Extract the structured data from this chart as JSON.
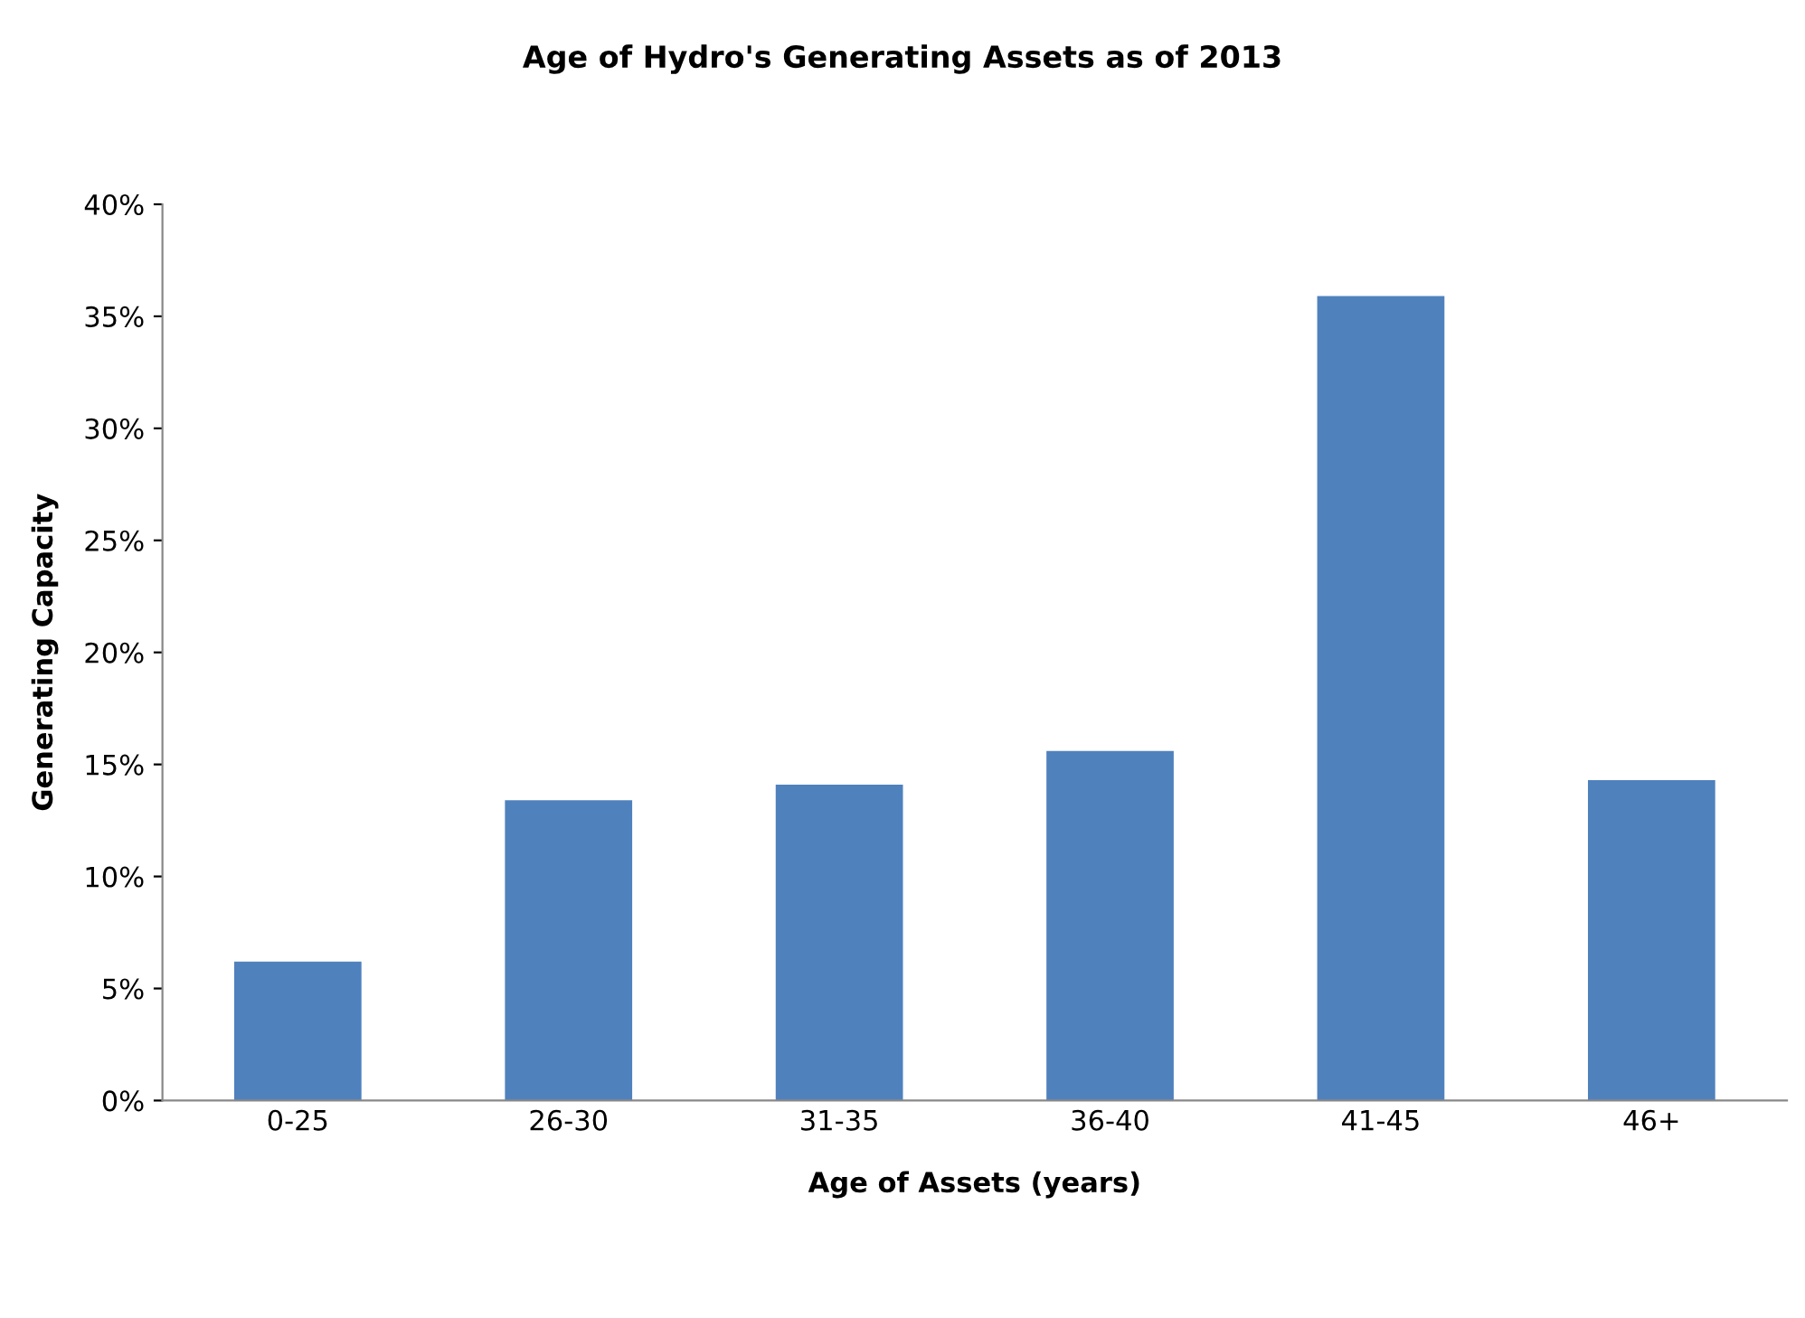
{
  "chart_data": {
    "type": "bar",
    "title": "Age of Hydro's Generating Assets as of 2013",
    "xlabel": "Age of Assets (years)",
    "ylabel": "Generating Capacity",
    "categories": [
      "0-25",
      "26-30",
      "31-35",
      "36-40",
      "41-45",
      "46+"
    ],
    "values": [
      6.2,
      13.4,
      14.1,
      15.6,
      35.9,
      14.3
    ],
    "color": "#4f81bd",
    "ylim": [
      0,
      40
    ],
    "yticks": [
      {
        "value": 0,
        "label": "0%"
      },
      {
        "value": 5,
        "label": "5%"
      },
      {
        "value": 10,
        "label": "10%"
      },
      {
        "value": 15,
        "label": "15%"
      },
      {
        "value": 20,
        "label": "20%"
      },
      {
        "value": 25,
        "label": "25%"
      },
      {
        "value": 30,
        "label": "30%"
      },
      {
        "value": 35,
        "label": "35%"
      },
      {
        "value": 40,
        "label": "40%"
      }
    ],
    "grid": false,
    "legend": false
  }
}
